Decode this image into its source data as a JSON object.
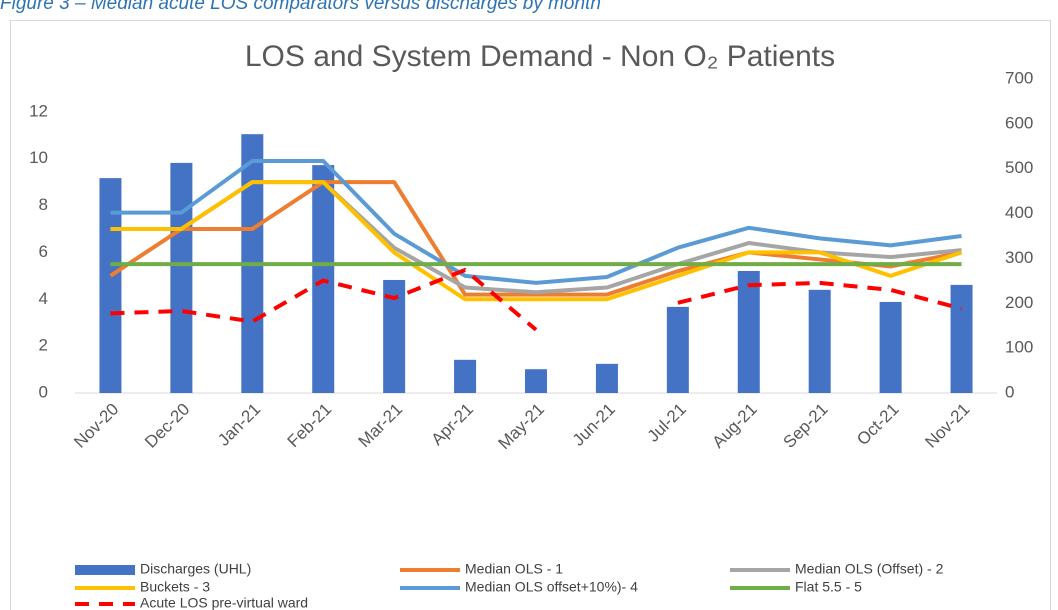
{
  "caption": "Figure 3 – Median acute LOS comparators versus discharges by month",
  "chart_data": {
    "type": "combo",
    "title": "LOS and System Demand - Non O₂ Patients",
    "categories": [
      "Nov-20",
      "Dec-20",
      "Jan-21",
      "Feb-21",
      "Mar-21",
      "Apr-21",
      "May-21",
      "Jun-21",
      "Jul-21",
      "Aug-21",
      "Sep-21",
      "Oct-21",
      "Nov-21"
    ],
    "ylim": [
      0,
      13.4
    ],
    "yticks": [
      0,
      2,
      4,
      6,
      8,
      10,
      12
    ],
    "y2lim": [
      0,
      700
    ],
    "y2ticks": [
      0,
      100,
      200,
      300,
      400,
      500,
      600,
      700
    ],
    "series": [
      {
        "name": "Discharges (UHL)",
        "type": "bar",
        "axis": "y2",
        "color": "#4472c4",
        "values": [
          479,
          513,
          577,
          508,
          252,
          74,
          53,
          65,
          192,
          272,
          230,
          203,
          241
        ]
      },
      {
        "name": "Median OLS - 1",
        "type": "line",
        "color": "#ed7d31",
        "values": [
          5,
          7,
          7,
          9,
          9,
          4.2,
          4.2,
          4.2,
          5.2,
          6,
          5.7,
          5.4,
          6
        ]
      },
      {
        "name": "Median OLS (Offset) - 2",
        "type": "line",
        "color": "#a5a5a5",
        "values": [
          7,
          7,
          9,
          9,
          6.2,
          4.5,
          4.3,
          4.5,
          5.5,
          6.4,
          6,
          5.8,
          6.1
        ]
      },
      {
        "name": "Buckets - 3",
        "type": "line",
        "color": "#ffc000",
        "values": [
          7,
          7,
          9,
          9,
          6,
          4,
          4,
          4,
          5,
          6,
          6,
          5,
          6
        ]
      },
      {
        "name": "Median OLS offset+10%)- 4",
        "type": "line",
        "color": "#5b9bd5",
        "values": [
          7.7,
          7.7,
          9.9,
          9.9,
          6.8,
          5,
          4.7,
          4.95,
          6.2,
          7.05,
          6.6,
          6.3,
          6.7
        ]
      },
      {
        "name": "Flat 5.5 - 5",
        "type": "line",
        "color": "#70ad47",
        "values": [
          5.5,
          5.5,
          5.5,
          5.5,
          5.5,
          5.5,
          5.5,
          5.5,
          5.5,
          5.5,
          5.5,
          5.5,
          5.5
        ]
      },
      {
        "name": "Acute LOS pre-virtual ward",
        "type": "line",
        "dashed": true,
        "color": "#ff0000",
        "values": [
          3.4,
          3.5,
          3.05,
          4.8,
          4.05,
          5.25,
          2.7,
          null,
          3.85,
          4.6,
          4.7,
          4.4,
          3.6
        ]
      }
    ]
  }
}
